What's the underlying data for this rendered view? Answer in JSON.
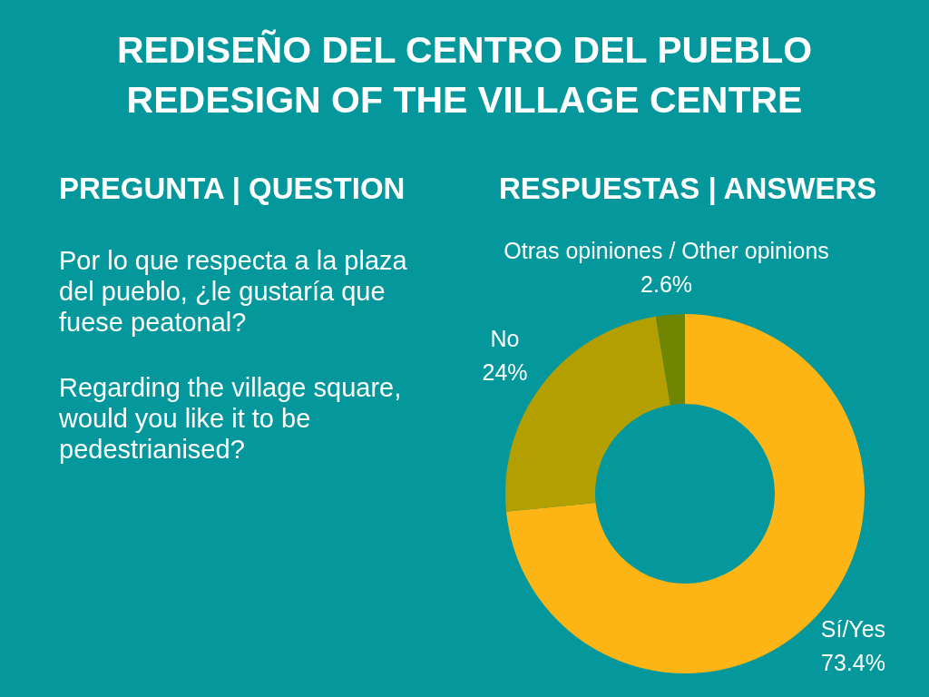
{
  "chart_data": {
    "type": "donut",
    "title": "REDISEÑO DEL CENTRO DEL PUEBLO",
    "subtitle": "REDESIGN OF THE VILLAGE CENTRE",
    "annotations": [
      "PREGUNTA | QUESTION",
      "RESPUESTAS | ANSWERS",
      "Por lo que respecta a la plaza del pueblo, ¿le gustaría que fuese peatonal?",
      "Regarding the village square, would you like it to be pedestrianised?"
    ],
    "categories": [
      "Sí/Yes",
      "No",
      "Otras opiniones / Other opinions"
    ],
    "values": [
      73.4,
      24,
      2.6
    ],
    "colors": [
      "#fdb515",
      "#b3a000",
      "#708500"
    ],
    "value_labels": [
      "73.4%",
      "24%",
      "2.6%"
    ]
  }
}
